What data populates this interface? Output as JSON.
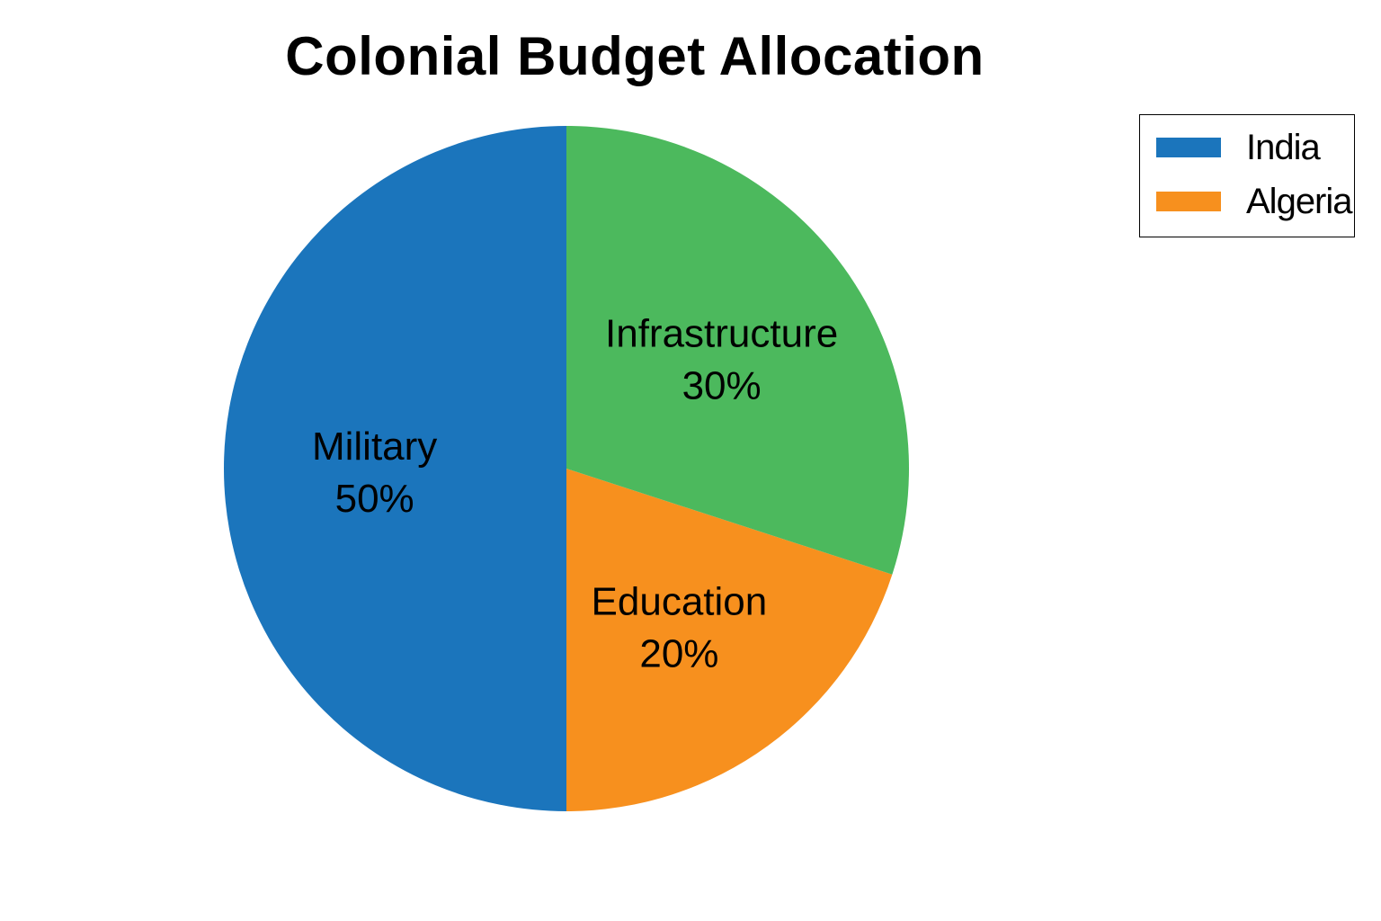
{
  "chart_data": {
    "type": "pie",
    "title": "Colonial Budget Allocation",
    "slices": [
      {
        "label": "Military",
        "percent_label": "50%",
        "value": 50,
        "color": "#1b75bc"
      },
      {
        "label": "Education",
        "percent_label": "20%",
        "value": 20,
        "color": "#f7901e"
      },
      {
        "label": "Infrastructure",
        "percent_label": "30%",
        "value": 30,
        "color": "#4cb95d"
      }
    ],
    "legend": {
      "placement": "top-right",
      "entries": [
        {
          "label": "India",
          "color": "#1b75bc"
        },
        {
          "label": "Algeria",
          "color": "#f7901e"
        }
      ]
    }
  }
}
